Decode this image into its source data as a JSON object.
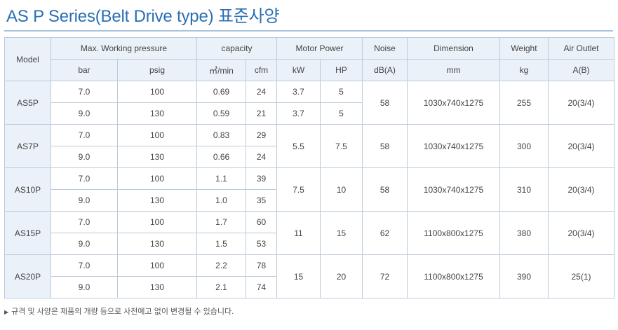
{
  "title": "AS P Series(Belt Drive type) 표준사양",
  "headers": {
    "model": "Model",
    "pressure": "Max. Working pressure",
    "capacity": "capacity",
    "motor": "Motor Power",
    "noise": "Noise",
    "dimension": "Dimension",
    "weight": "Weight",
    "air_outlet": "Air Outlet"
  },
  "units": {
    "bar": "bar",
    "psig": "psig",
    "m3min": "㎥/min",
    "cfm": "cfm",
    "kw": "kW",
    "hp": "HP",
    "db": "dB(A)",
    "mm": "mm",
    "kg": "kg",
    "ab": "A(B)"
  },
  "models": [
    {
      "name": "AS5P",
      "rows": [
        {
          "bar": "7.0",
          "psig": "100",
          "m3min": "0.69",
          "cfm": "24",
          "kw": "3.7",
          "hp": "5"
        },
        {
          "bar": "9.0",
          "psig": "130",
          "m3min": "0.59",
          "cfm": "21",
          "kw": "3.7",
          "hp": "5"
        }
      ],
      "noise": "58",
      "dimension": "1030x740x1275",
      "weight": "255",
      "air_outlet": "20(3/4)"
    },
    {
      "name": "AS7P",
      "rows": [
        {
          "bar": "7.0",
          "psig": "100",
          "m3min": "0.83",
          "cfm": "29"
        },
        {
          "bar": "9.0",
          "psig": "130",
          "m3min": "0.66",
          "cfm": "24"
        }
      ],
      "kw": "5.5",
      "hp": "7.5",
      "noise": "58",
      "dimension": "1030x740x1275",
      "weight": "300",
      "air_outlet": "20(3/4)"
    },
    {
      "name": "AS10P",
      "rows": [
        {
          "bar": "7.0",
          "psig": "100",
          "m3min": "1.1",
          "cfm": "39"
        },
        {
          "bar": "9.0",
          "psig": "130",
          "m3min": "1.0",
          "cfm": "35"
        }
      ],
      "kw": "7.5",
      "hp": "10",
      "noise": "58",
      "dimension": "1030x740x1275",
      "weight": "310",
      "air_outlet": "20(3/4)"
    },
    {
      "name": "AS15P",
      "rows": [
        {
          "bar": "7.0",
          "psig": "100",
          "m3min": "1.7",
          "cfm": "60"
        },
        {
          "bar": "9.0",
          "psig": "130",
          "m3min": "1.5",
          "cfm": "53"
        }
      ],
      "kw": "11",
      "hp": "15",
      "noise": "62",
      "dimension": "1100x800x1275",
      "weight": "380",
      "air_outlet": "20(3/4)"
    },
    {
      "name": "AS20P",
      "rows": [
        {
          "bar": "7.0",
          "psig": "100",
          "m3min": "2.2",
          "cfm": "78"
        },
        {
          "bar": "9.0",
          "psig": "130",
          "m3min": "2.1",
          "cfm": "74"
        }
      ],
      "kw": "15",
      "hp": "20",
      "noise": "72",
      "dimension": "1100x800x1275",
      "weight": "390",
      "air_outlet": "25(1)"
    }
  ],
  "footnote": "규격 및 사양은 제품의 개량 등으로 사전예고 없이 변경될 수 있습니다."
}
